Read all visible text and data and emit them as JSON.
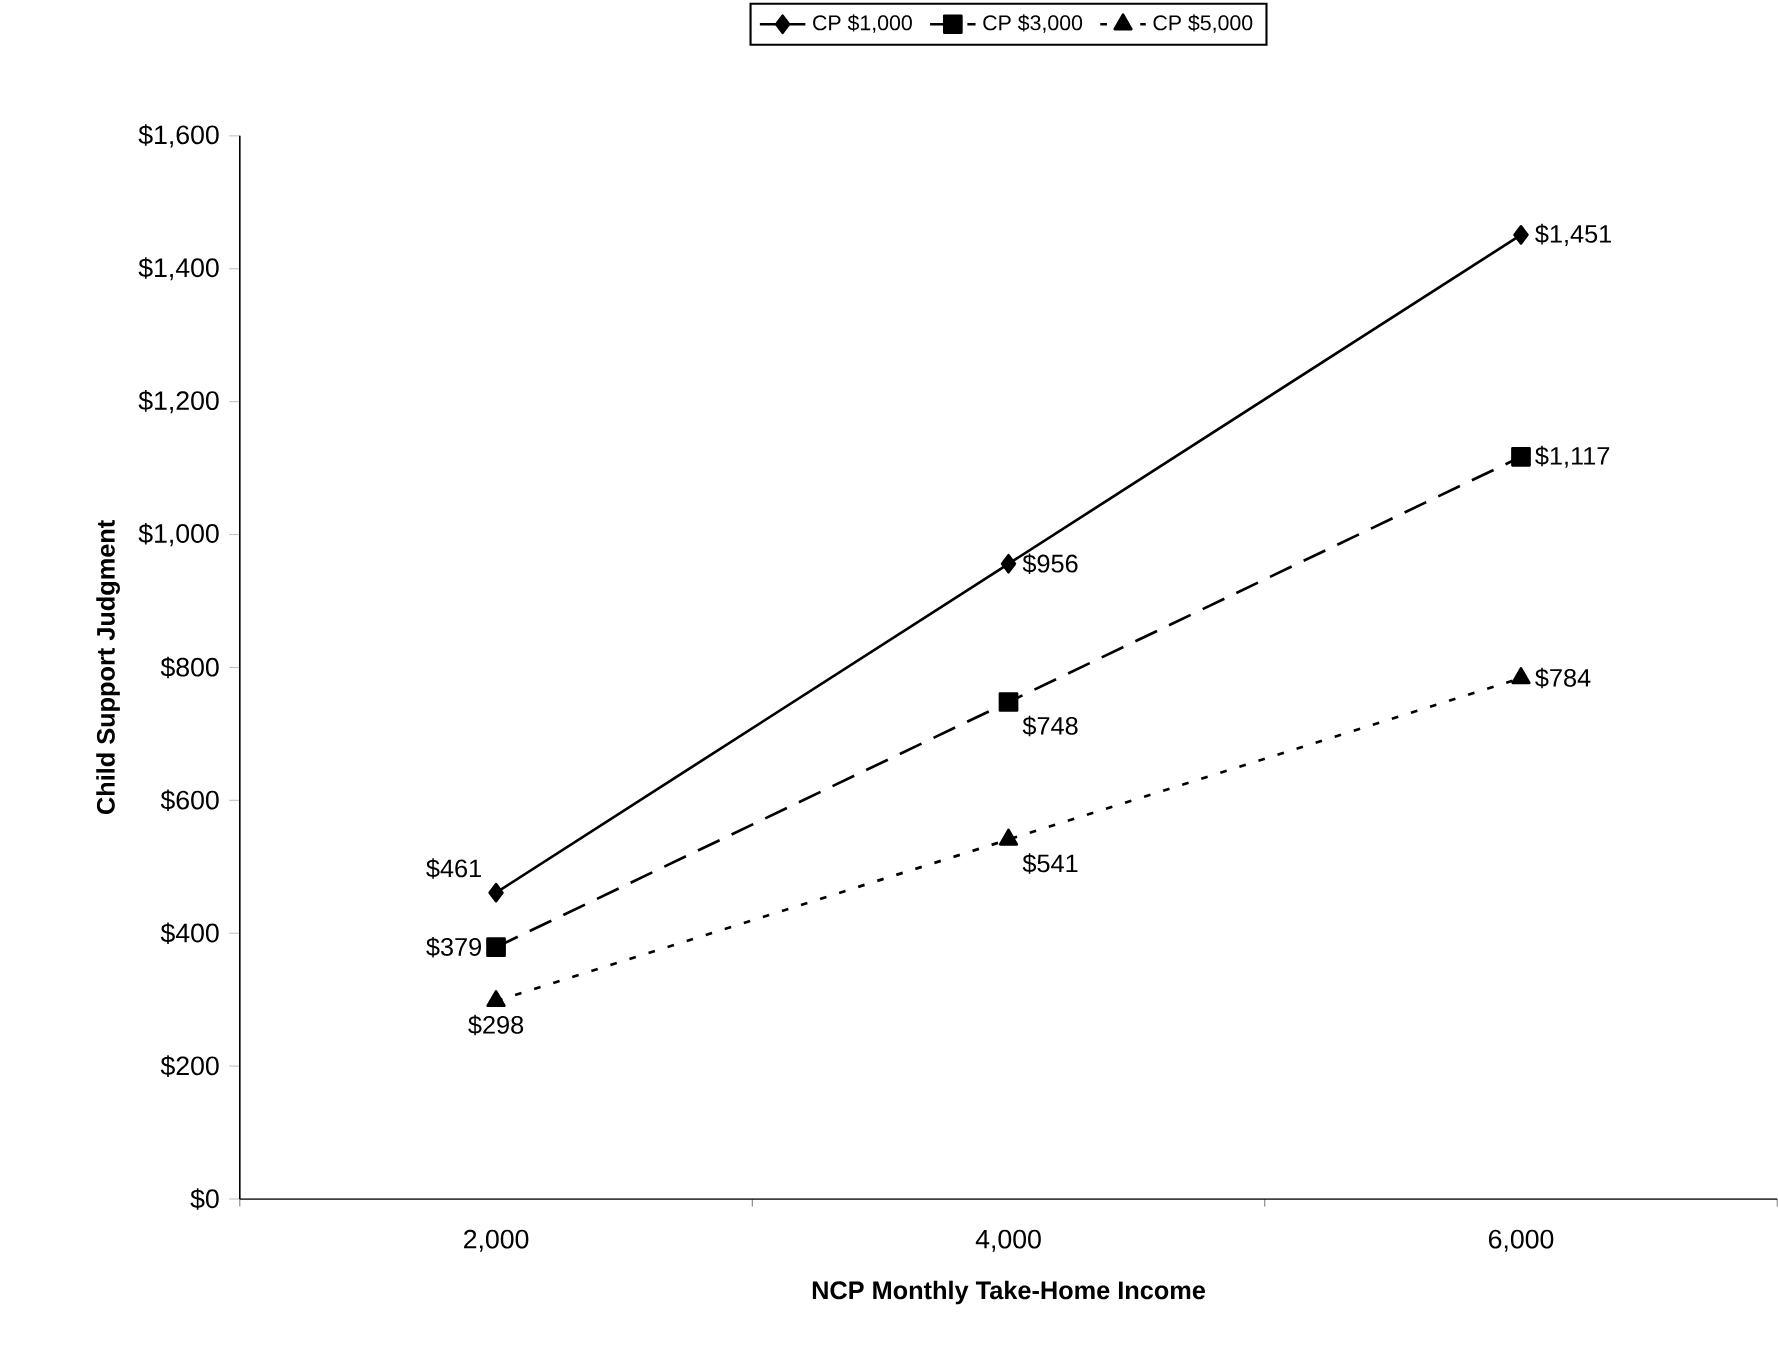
{
  "chart_data": {
    "type": "line",
    "xlabel": "NCP Monthly Take-Home Income",
    "ylabel": "Child Support Judgment",
    "categories": [
      "2,000",
      "4,000",
      "6,000"
    ],
    "ylim": [
      0,
      1600
    ],
    "yticks": [
      {
        "value": 0,
        "label": "$0"
      },
      {
        "value": 200,
        "label": "$200"
      },
      {
        "value": 400,
        "label": "$400"
      },
      {
        "value": 600,
        "label": "$600"
      },
      {
        "value": 800,
        "label": "$800"
      },
      {
        "value": 1000,
        "label": "$1,000"
      },
      {
        "value": 1200,
        "label": "$1,200"
      },
      {
        "value": 1400,
        "label": "$1,400"
      },
      {
        "value": 1600,
        "label": "$1,600"
      }
    ],
    "grid": false,
    "legend": "top",
    "series": [
      {
        "name": "CP $1,000",
        "color": "#000000",
        "marker": "diamond",
        "line_style": "solid",
        "values": [
          461,
          956,
          1451
        ],
        "value_labels": [
          "$461",
          "$956",
          "$1,451"
        ]
      },
      {
        "name": "CP $3,000",
        "color": "#000000",
        "marker": "square",
        "line_style": "dashed",
        "values": [
          379,
          748,
          1117
        ],
        "value_labels": [
          "$379",
          "$748",
          "$1,117"
        ]
      },
      {
        "name": "CP $5,000",
        "color": "#000000",
        "marker": "triangle",
        "line_style": "dotted",
        "values": [
          298,
          541,
          784
        ],
        "value_labels": [
          "$298",
          "$541",
          "$784"
        ]
      }
    ]
  }
}
